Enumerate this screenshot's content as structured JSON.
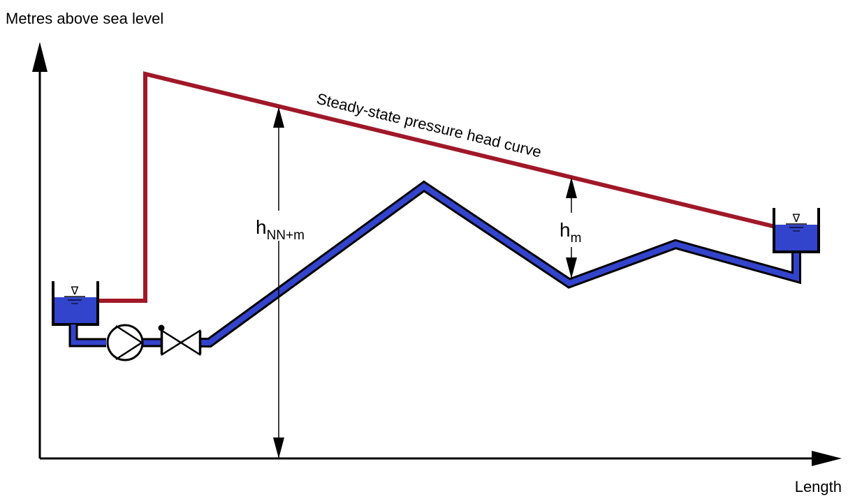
{
  "diagram": {
    "y_axis_label": "Metres above sea level",
    "x_axis_label": "Length",
    "curve_label": "Steady-state pressure head curve",
    "h_total_main": "h",
    "h_total_sub": "NN+m",
    "h_local_main": "h",
    "h_local_sub": "m",
    "water_level_symbol": "∇"
  },
  "colors": {
    "pressure_curve": "#a01828",
    "pipe_fill": "#3344cc",
    "outline": "#000000",
    "background": "#ffffff"
  },
  "icons": [
    "pump-icon",
    "valve-icon",
    "reservoir-icon"
  ]
}
